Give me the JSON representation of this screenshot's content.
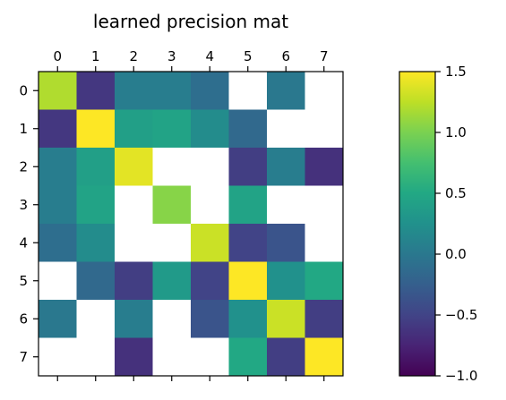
{
  "chart_data": {
    "type": "heatmap",
    "title": "learned precision mat",
    "x_ticks": [
      "0",
      "1",
      "2",
      "3",
      "4",
      "5",
      "6",
      "7"
    ],
    "y_ticks": [
      "0",
      "1",
      "2",
      "3",
      "4",
      "5",
      "6",
      "7"
    ],
    "x_tick_position": "top",
    "colormap": "viridis",
    "missing_color": "#ffffff",
    "vmin": -1.0,
    "vmax": 1.5,
    "matrix": [
      [
        1.2,
        -0.6,
        0.05,
        0.05,
        -0.1,
        null,
        0.0,
        null
      ],
      [
        -0.6,
        1.5,
        0.4,
        0.45,
        0.2,
        -0.15,
        null,
        null
      ],
      [
        0.05,
        0.4,
        1.4,
        null,
        null,
        -0.55,
        0.05,
        -0.65
      ],
      [
        0.05,
        0.45,
        null,
        1.05,
        null,
        0.45,
        null,
        null
      ],
      [
        -0.1,
        0.2,
        null,
        null,
        1.3,
        -0.5,
        -0.35,
        null
      ],
      [
        null,
        -0.15,
        -0.55,
        0.35,
        -0.5,
        1.5,
        0.25,
        0.5
      ],
      [
        0.0,
        null,
        0.05,
        null,
        -0.35,
        0.25,
        1.3,
        -0.55
      ],
      [
        null,
        null,
        -0.65,
        null,
        null,
        0.5,
        -0.55,
        1.5
      ]
    ],
    "colorbar": {
      "ticks": [
        1.5,
        1.0,
        0.5,
        0.0,
        -0.5,
        -1.0
      ],
      "tick_labels": [
        "1.5",
        "1.0",
        "0.5",
        "0.0",
        "−0.5",
        "−1.0"
      ]
    }
  }
}
